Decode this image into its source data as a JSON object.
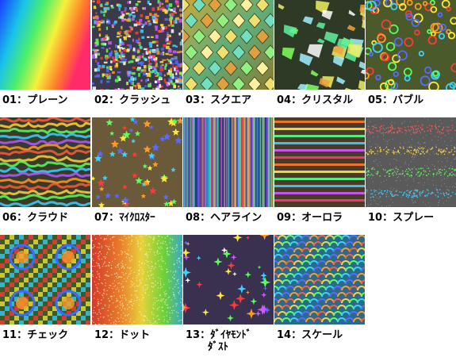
{
  "samples": [
    {
      "label": "01：プレーン",
      "pattern": "plain-gradient-swatch"
    },
    {
      "label": "02：クラッシュ",
      "pattern": "crash-glitter-swatch"
    },
    {
      "label": "03：スクエア",
      "pattern": "square-diamond-swatch"
    },
    {
      "label": "04：クリスタル",
      "pattern": "crystal-shard-swatch"
    },
    {
      "label": "05：バブル",
      "pattern": "bubble-ring-swatch"
    },
    {
      "label": "06：クラウド",
      "pattern": "cloud-wave-swatch"
    },
    {
      "label": "07：ﾏｲｸﾛｽﾀｰ",
      "pattern": "micro-star-swatch"
    },
    {
      "label": "08：ヘアライン",
      "pattern": "hairline-streak-swatch"
    },
    {
      "label": "09：オーロラ",
      "pattern": "aurora-band-swatch"
    },
    {
      "label": "10：スプレー",
      "pattern": "spray-band-swatch"
    },
    {
      "label": "11：チェック",
      "pattern": "check-dot-swatch"
    },
    {
      "label": "12：ドット",
      "pattern": "dot-rainbow-swatch"
    },
    {
      "label_lines": [
        "13：ﾀﾞｲﾔﾓﾝﾄﾞ",
        "ﾀﾞｽﾄ"
      ],
      "pattern": "diamond-dust-swatch"
    },
    {
      "label": "14：スケール",
      "pattern": "scale-swatch"
    }
  ]
}
